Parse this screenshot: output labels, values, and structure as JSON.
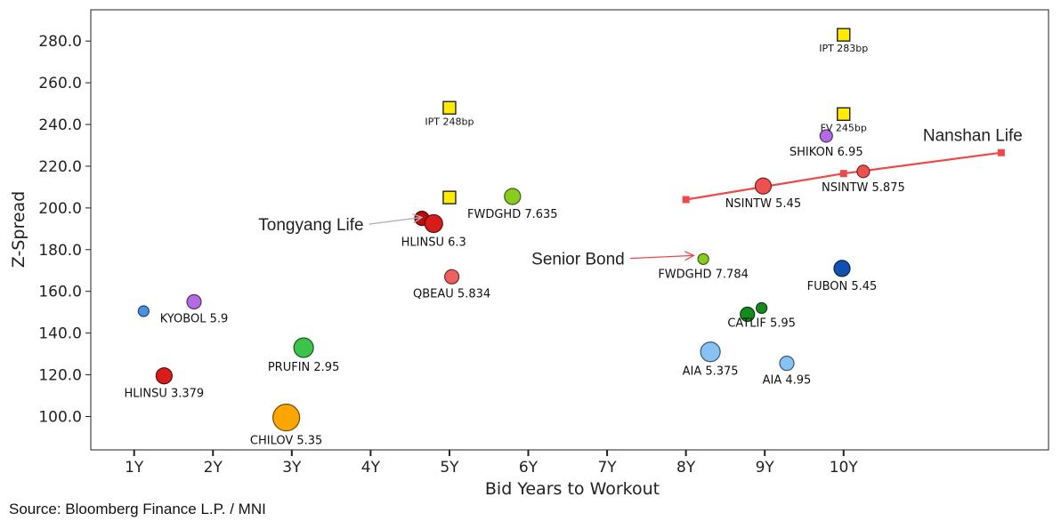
{
  "chart_data": {
    "type": "scatter",
    "xlabel": "Bid Years to Workout",
    "ylabel": "Z-Spread",
    "xlim": [
      0.45,
      12.6
    ],
    "ylim": [
      84,
      295
    ],
    "x_ticks": [
      1,
      2,
      3,
      4,
      5,
      6,
      7,
      8,
      9,
      10
    ],
    "x_tick_labels": [
      "1Y",
      "2Y",
      "3Y",
      "4Y",
      "5Y",
      "6Y",
      "7Y",
      "8Y",
      "9Y",
      "10Y"
    ],
    "y_ticks": [
      100,
      120,
      140,
      160,
      180,
      200,
      220,
      240,
      260,
      280
    ],
    "y_tick_labels": [
      "100.0",
      "120.0",
      "140.0",
      "160.0",
      "180.0",
      "200.0",
      "220.0",
      "240.0",
      "260.0",
      "280.0"
    ],
    "points": [
      {
        "label": "",
        "x": 1.12,
        "y": 150.5,
        "size": 6,
        "color": "#4a90e2"
      },
      {
        "label": "KYOBOL 5.9",
        "x": 1.76,
        "y": 155.0,
        "size": 8,
        "color": "#b36ae2"
      },
      {
        "label": "HLINSU 3.379",
        "x": 1.38,
        "y": 119.5,
        "size": 9,
        "color": "#d81b1b"
      },
      {
        "label": "PRUFIN 2.95",
        "x": 3.15,
        "y": 133.0,
        "size": 11,
        "color": "#3dc24a"
      },
      {
        "label": "CHILOV 5.35",
        "x": 2.93,
        "y": 99.5,
        "size": 15,
        "color": "#ffa500"
      },
      {
        "label": "",
        "x": 4.65,
        "y": 195.0,
        "size": 8,
        "color": "#b80f0f"
      },
      {
        "label": "HLINSU 6.3",
        "x": 4.8,
        "y": 192.5,
        "size": 10,
        "color": "#d81b1b"
      },
      {
        "label": "QBEAU 5.834",
        "x": 5.03,
        "y": 167.0,
        "size": 8,
        "color": "#f06060"
      },
      {
        "label": "FWDGHD 7.635",
        "x": 5.8,
        "y": 205.5,
        "size": 9,
        "color": "#88cc22"
      },
      {
        "label": "FWDGHD 7.784",
        "x": 8.22,
        "y": 175.5,
        "size": 6,
        "color": "#88cc22"
      },
      {
        "label": "NSINTW 5.45",
        "x": 8.98,
        "y": 210.5,
        "size": 9,
        "color": "#f05050"
      },
      {
        "label": "NSINTW 5.875",
        "x": 10.25,
        "y": 217.5,
        "size": 7,
        "color": "#f05050"
      },
      {
        "label": "SHIKON 6.95",
        "x": 9.78,
        "y": 234.5,
        "size": 7,
        "color": "#b36ae2"
      },
      {
        "label": "FUBON 5.45",
        "x": 9.98,
        "y": 171.0,
        "size": 9,
        "color": "#1150b0"
      },
      {
        "label": "",
        "x": 8.78,
        "y": 149.0,
        "size": 8,
        "color": "#158a1e"
      },
      {
        "label": "CATLIF 5.95",
        "x": 8.96,
        "y": 152.0,
        "size": 6,
        "color": "#158a1e"
      },
      {
        "label": "AIA 5.375",
        "x": 8.31,
        "y": 131.0,
        "size": 11,
        "color": "#87c2f5"
      },
      {
        "label": "AIA 4.95",
        "x": 9.28,
        "y": 125.5,
        "size": 8,
        "color": "#87c2f5"
      }
    ],
    "ipt_markers": [
      {
        "label": "IPT 248bp",
        "x": 5.0,
        "y": 248
      },
      {
        "label": "",
        "x": 5.0,
        "y": 205
      },
      {
        "label": "IPT 283bp",
        "x": 10.0,
        "y": 283
      },
      {
        "label": "FV 245bp",
        "x": 10.0,
        "y": 245
      }
    ],
    "curves": [
      {
        "name": "Nanshan Life",
        "color": "#f04848",
        "x": [
          8.0,
          10.0,
          12.0
        ],
        "y": [
          204,
          216.5,
          226.5
        ]
      }
    ],
    "annotations": [
      {
        "text": "Tongyang Life",
        "arrow_color": "#b0b0b0",
        "from": [
          3.98,
          192.2
        ],
        "to": [
          4.65,
          195.5
        ]
      },
      {
        "text": "Senior Bond",
        "arrow_color": "#f04848",
        "from": [
          7.29,
          175.8
        ],
        "to": [
          8.1,
          177.2
        ]
      }
    ]
  },
  "source": "Source: Bloomberg Finance L.P. / MNI",
  "colors": {
    "ipt_fill": "#ffeb00",
    "curve": "#f04848"
  }
}
